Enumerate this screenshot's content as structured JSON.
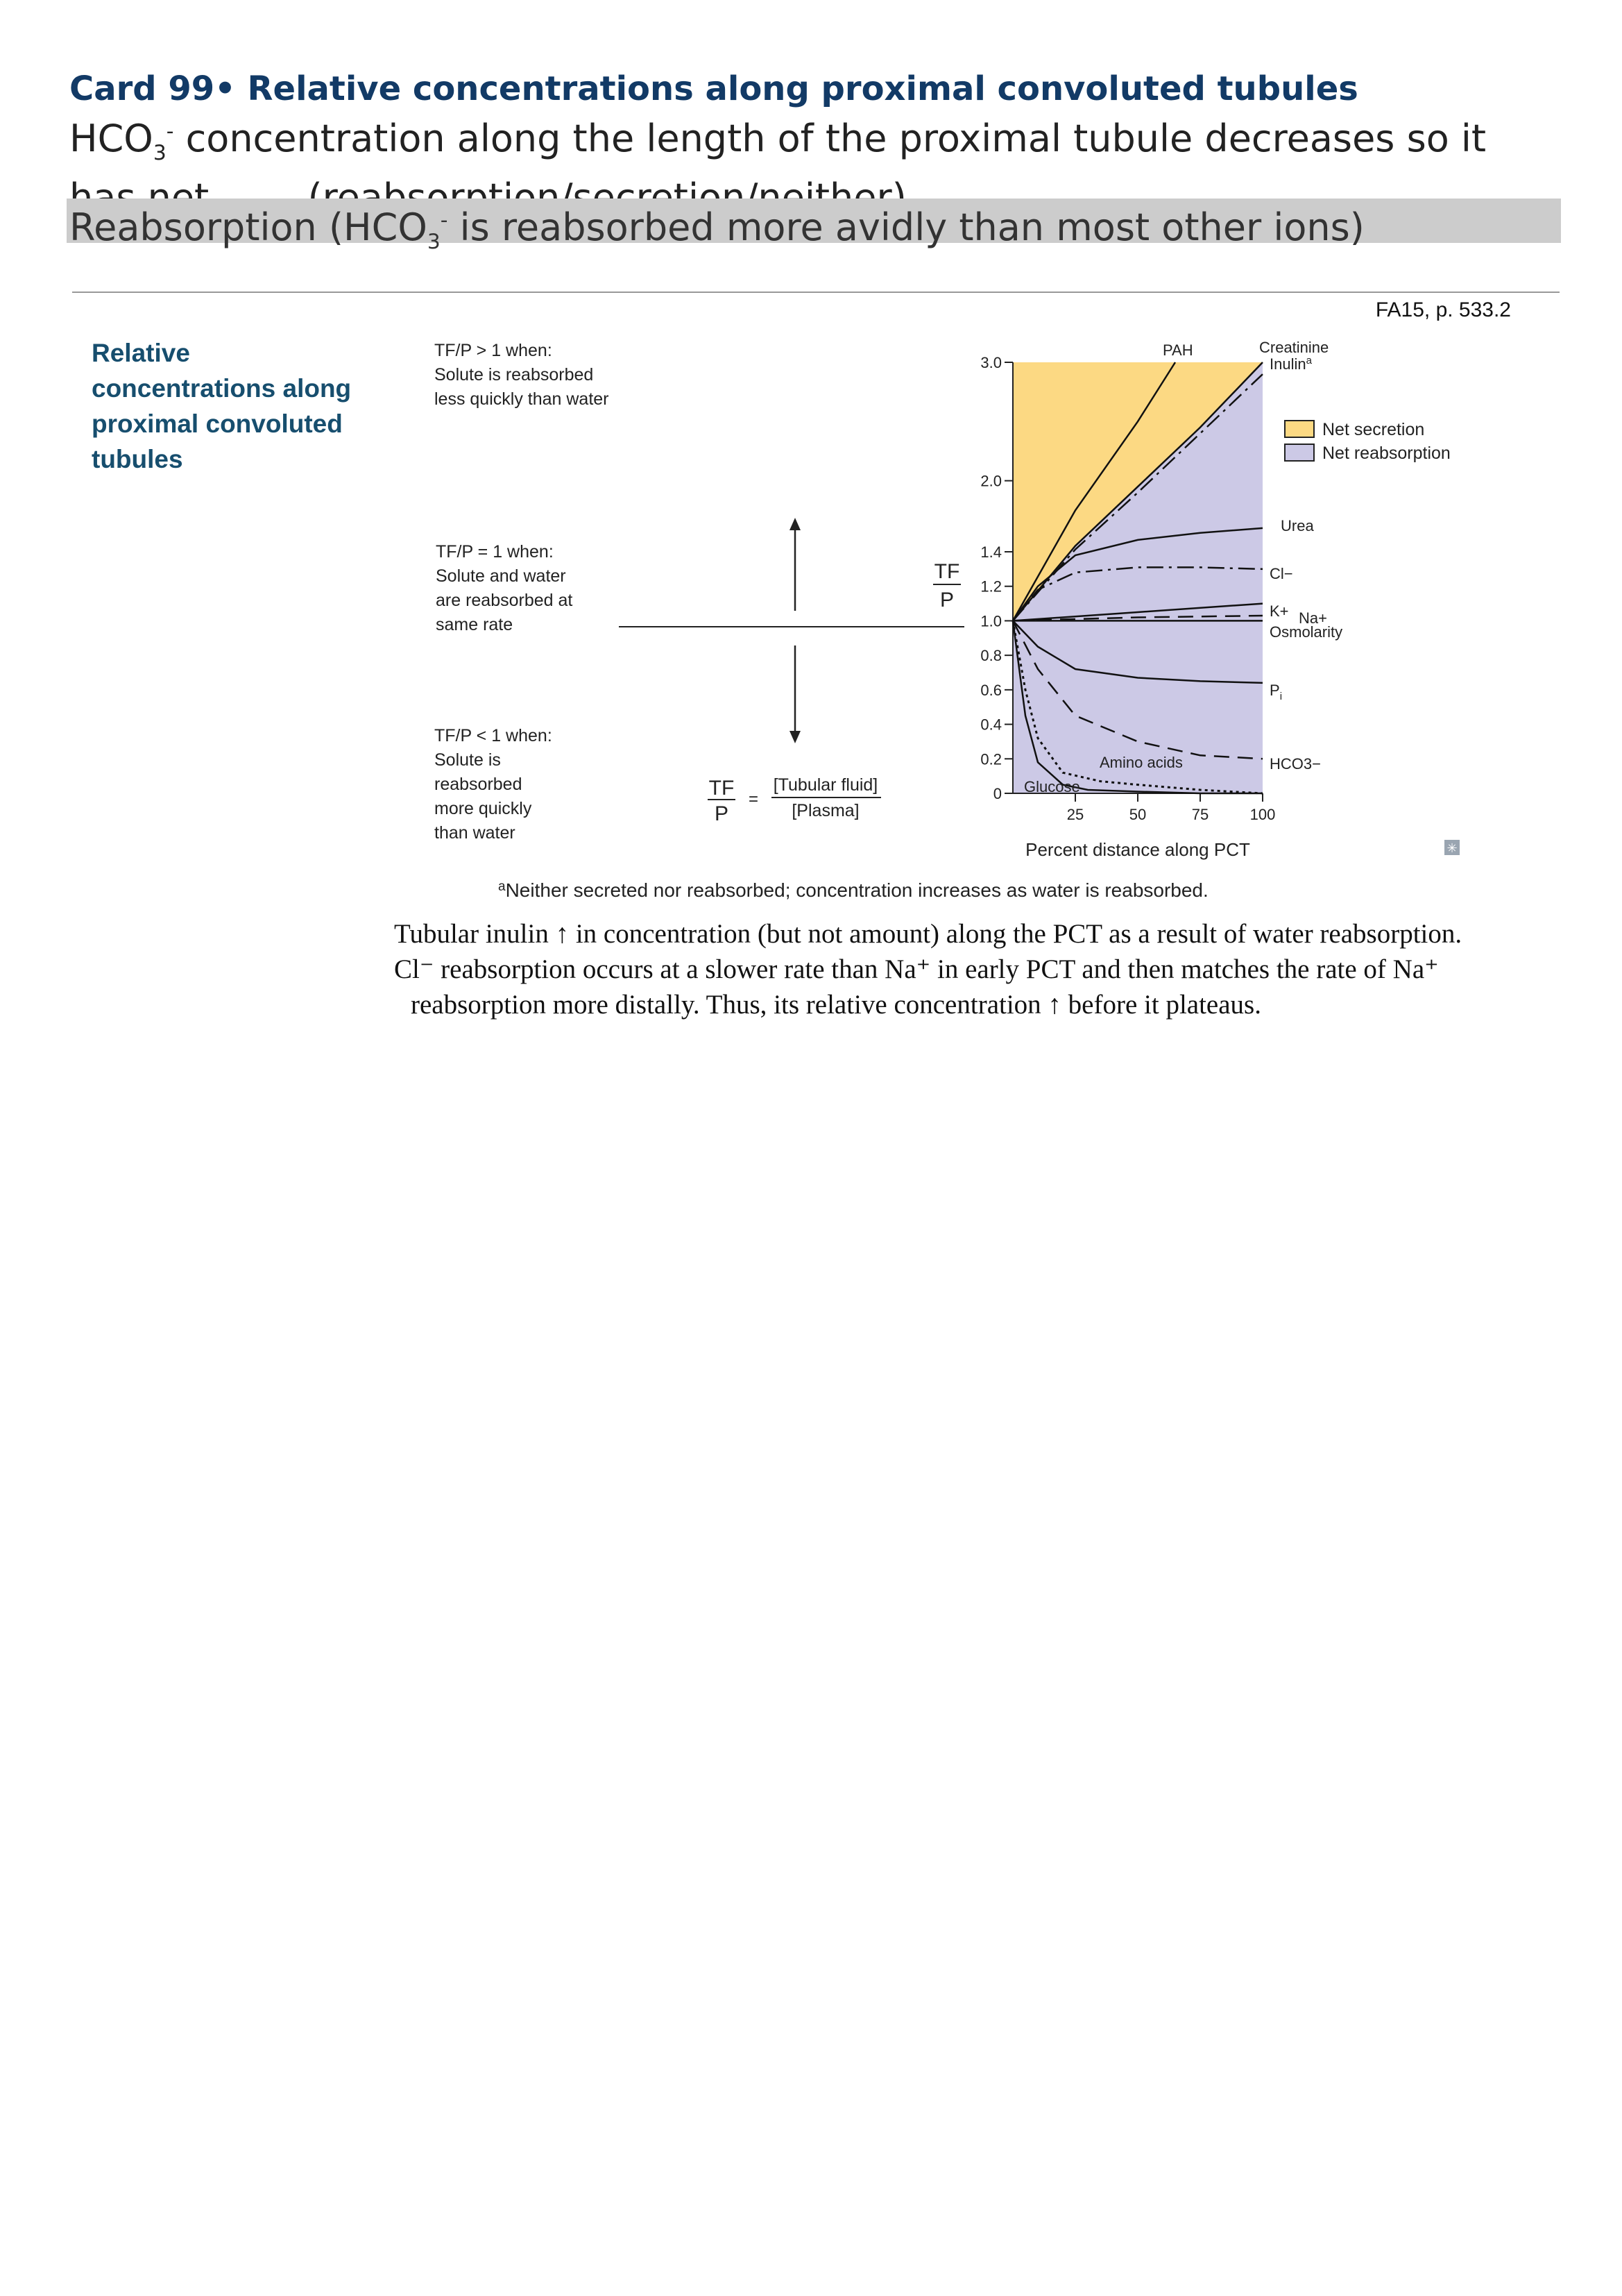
{
  "card": {
    "title": "Card 99• Relative concentrations along proximal convoluted tubules",
    "question_part1": "HCO",
    "question_sub": "3",
    "question_sup": "-",
    "question_part2": " concentration along the length of the proximal tubule decreases so it has net ____ (reabsorption/secretion/neither).",
    "answer_part1": "Reabsorption (HCO",
    "answer_sub": "3",
    "answer_sup": "-",
    "answer_part2": " is reabsorbed more avidly than most other ions)"
  },
  "source_ref": "FA15, p. 533.2",
  "section_title": "Relative concentrations along proximal convoluted tubules",
  "figure": {
    "tfp_gt1": [
      "TF/P > 1 when:",
      "Solute is reabsorbed",
      "less quickly than water"
    ],
    "tfp_eq1": [
      "TF/P = 1 when:",
      "Solute and water",
      "are reabsorbed at",
      "same rate"
    ],
    "tfp_lt1": [
      "TF/P < 1 when:",
      "Solute is",
      "reabsorbed",
      "more quickly",
      "than water"
    ],
    "formula_tf": "TF",
    "formula_p": "P",
    "formula_eq": "=",
    "formula_num": "[Tubular fluid]",
    "formula_den": "[Plasma]",
    "axis_tf": "TF",
    "axis_p": "P",
    "footnote": "Neither secreted nor reabsorbed; concentration increases as water is reabsorbed.",
    "footnote_mark": "a",
    "legend_secretion": "Net secretion",
    "legend_reabsorption": "Net reabsorption",
    "colors": {
      "secretion": "#fcd983",
      "reabsorption": "#ccc9e6",
      "title": "#123a66",
      "heading": "#174e6e"
    }
  },
  "chart_data": {
    "type": "line",
    "xlabel": "Percent distance along PCT",
    "ylabel": "TF/P",
    "xlim": [
      0,
      100
    ],
    "ylim": [
      0,
      3.0
    ],
    "x_ticks": [
      "25",
      "50",
      "75",
      "100"
    ],
    "y_ticks": [
      "0",
      "0.2",
      "0.4",
      "0.6",
      "0.8",
      "1.0",
      "1.2",
      "1.4",
      "2.0",
      "3.0"
    ],
    "series": [
      {
        "name": "PAH",
        "style": "solid",
        "x": [
          0,
          25,
          50,
          65
        ],
        "y": [
          1.0,
          1.75,
          2.5,
          3.0
        ]
      },
      {
        "name": "Creatinine",
        "style": "solid",
        "x": [
          0,
          25,
          50,
          75,
          100
        ],
        "y": [
          1.0,
          1.45,
          1.95,
          2.45,
          3.0
        ]
      },
      {
        "name": "Inulin",
        "label_sup": "a",
        "style": "dash-dot",
        "x": [
          0,
          25,
          50,
          75,
          100
        ],
        "y": [
          1.0,
          1.42,
          1.9,
          2.4,
          2.9
        ]
      },
      {
        "name": "Urea",
        "style": "solid",
        "x": [
          0,
          10,
          25,
          50,
          75,
          100
        ],
        "y": [
          1.0,
          1.2,
          1.38,
          1.5,
          1.56,
          1.6
        ]
      },
      {
        "name": "Cl−",
        "style": "dash-dot",
        "x": [
          0,
          10,
          25,
          50,
          75,
          100
        ],
        "y": [
          1.0,
          1.18,
          1.28,
          1.31,
          1.31,
          1.3
        ]
      },
      {
        "name": "K+",
        "style": "solid",
        "x": [
          0,
          50,
          100
        ],
        "y": [
          1.0,
          1.05,
          1.1
        ]
      },
      {
        "name": "Na+",
        "style": "dashed",
        "x": [
          0,
          50,
          100
        ],
        "y": [
          1.0,
          1.02,
          1.03
        ]
      },
      {
        "name": "Osmolarity",
        "style": "solid",
        "x": [
          0,
          50,
          100
        ],
        "y": [
          1.0,
          1.0,
          1.0
        ]
      },
      {
        "name": "Pi",
        "label_sub": "i",
        "style": "solid",
        "x": [
          0,
          10,
          25,
          50,
          75,
          100
        ],
        "y": [
          1.0,
          0.85,
          0.72,
          0.67,
          0.65,
          0.64
        ]
      },
      {
        "name": "HCO3−",
        "style": "dashed",
        "x": [
          0,
          10,
          25,
          50,
          75,
          100
        ],
        "y": [
          1.0,
          0.72,
          0.45,
          0.3,
          0.22,
          0.2
        ]
      },
      {
        "name": "Amino acids",
        "style": "dotted",
        "x": [
          0,
          5,
          10,
          20,
          35,
          50,
          75,
          100
        ],
        "y": [
          1.0,
          0.6,
          0.32,
          0.12,
          0.07,
          0.05,
          0.02,
          0.0
        ]
      },
      {
        "name": "Glucose",
        "style": "solid",
        "x": [
          0,
          5,
          10,
          20,
          30,
          50,
          75,
          100
        ],
        "y": [
          1.0,
          0.45,
          0.18,
          0.05,
          0.02,
          0.01,
          0.0,
          0.0
        ]
      }
    ],
    "legend": [
      "Net secretion",
      "Net reabsorption"
    ],
    "legend_position": "right",
    "regions": {
      "above_creatinine": "Net secretion",
      "below_creatinine": "Net reabsorption"
    }
  },
  "caption": {
    "line1": "Tubular inulin ↑ in concentration (but not amount) along the PCT as a result of water reabsorption.",
    "line2": "Cl⁻ reabsorption occurs at a slower rate than Na⁺ in early PCT and then matches the rate of Na⁺",
    "line3": "reabsorption more distally. Thus, its relative concentration ↑ before it plateaus."
  }
}
